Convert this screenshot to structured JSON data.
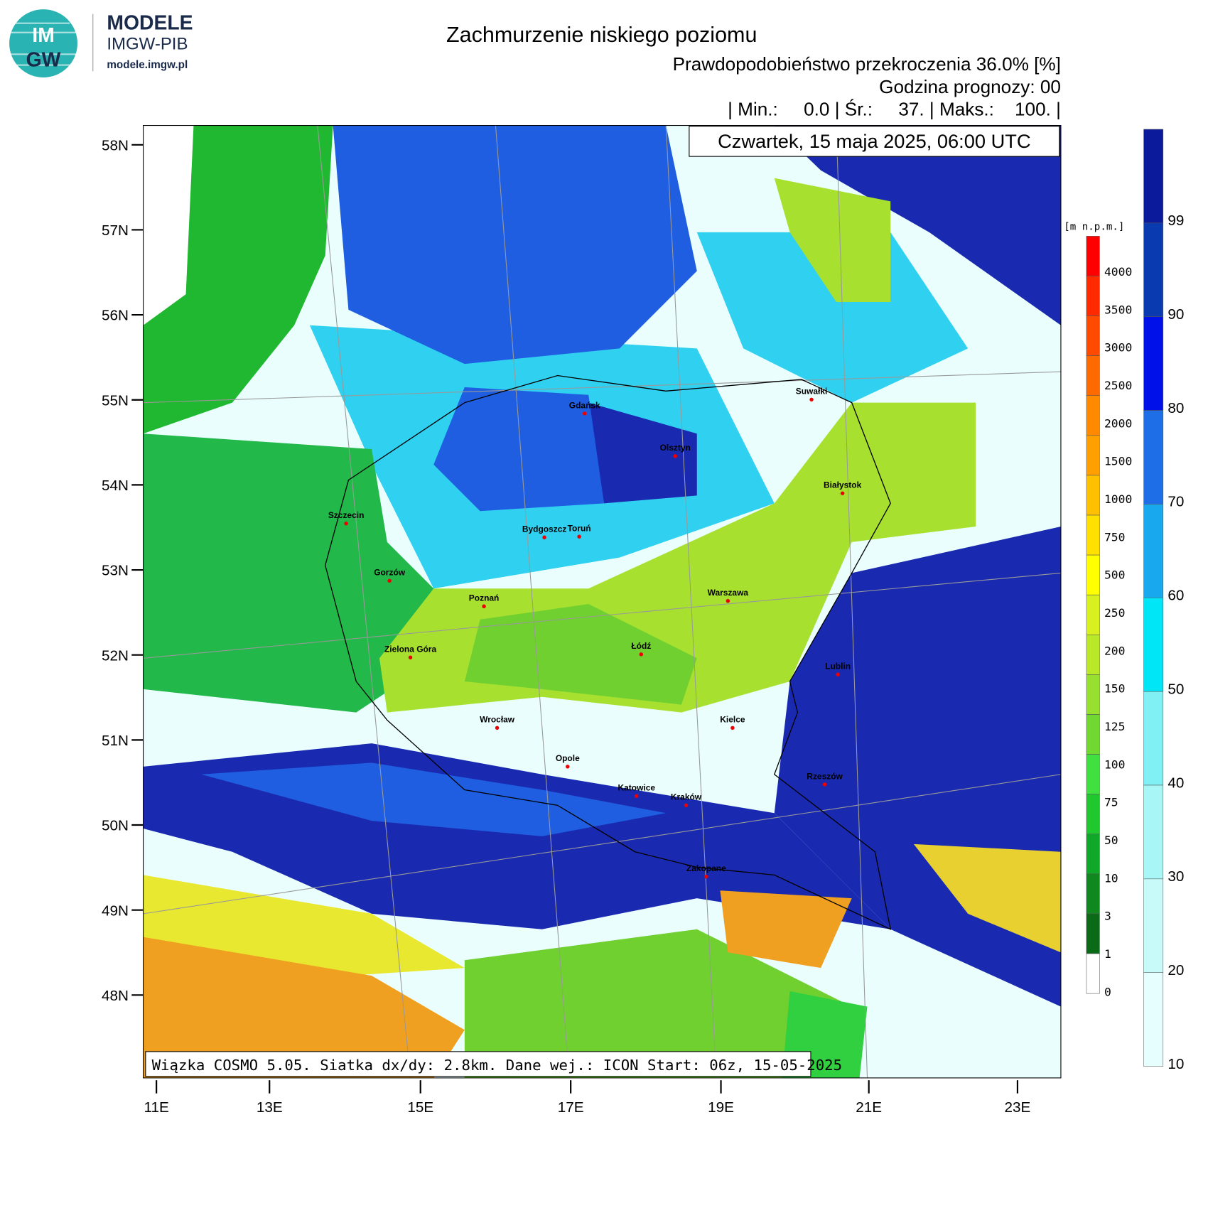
{
  "logo": {
    "mark_top": "IM",
    "mark_bottom": "GW",
    "title": "MODELE",
    "subtitle": "IMGW-PIB",
    "url": "modele.imgw.pl"
  },
  "header": {
    "title": "Zachmurzenie niskiego poziomu",
    "subtitle": "Prawdopodobieństwo przekroczenia 36.0% [%]",
    "forecast_hour": "Godzina prognozy: 00",
    "stats": "| Min.:     0.0 | Śr.:     37. | Maks.:    100. |",
    "date": "Czwartek, 15 maja 2025, 06:00 UTC"
  },
  "footer": "Wiązka COSMO 5.05. Siatka dx/dy: 2.8km. Dane wej.: ICON Start: 06z, 15-05-2025",
  "lat_labels": [
    "58N",
    "57N",
    "56N",
    "55N",
    "54N",
    "53N",
    "52N",
    "51N",
    "50N",
    "49N",
    "48N"
  ],
  "lon_labels": [
    "11E",
    "13E",
    "15E",
    "17E",
    "19E",
    "21E",
    "23E"
  ],
  "elevation_legend": {
    "title": "[m n.p.m.]",
    "labels": [
      "4000",
      "3500",
      "3000",
      "2500",
      "2000",
      "1500",
      "1000",
      "750",
      "500",
      "250",
      "200",
      "150",
      "125",
      "100",
      "75",
      "50",
      "10",
      "3",
      "1",
      "0"
    ]
  },
  "probability_legend": {
    "labels": [
      "99",
      "90",
      "80",
      "70",
      "60",
      "50",
      "40",
      "30",
      "20",
      "10"
    ]
  },
  "cities": [
    "Gdańsk",
    "Olsztyn",
    "Suwałki",
    "Białystok",
    "Szczecin",
    "Bydgoszcz",
    "Toruń",
    "Gorzów",
    "Poznań",
    "Warszawa",
    "Zielona Góra",
    "Łódź",
    "Lublin",
    "Kielce",
    "Wrocław",
    "Opole",
    "Rzeszów",
    "Katowice",
    "Kraków",
    "Zakopane"
  ]
}
